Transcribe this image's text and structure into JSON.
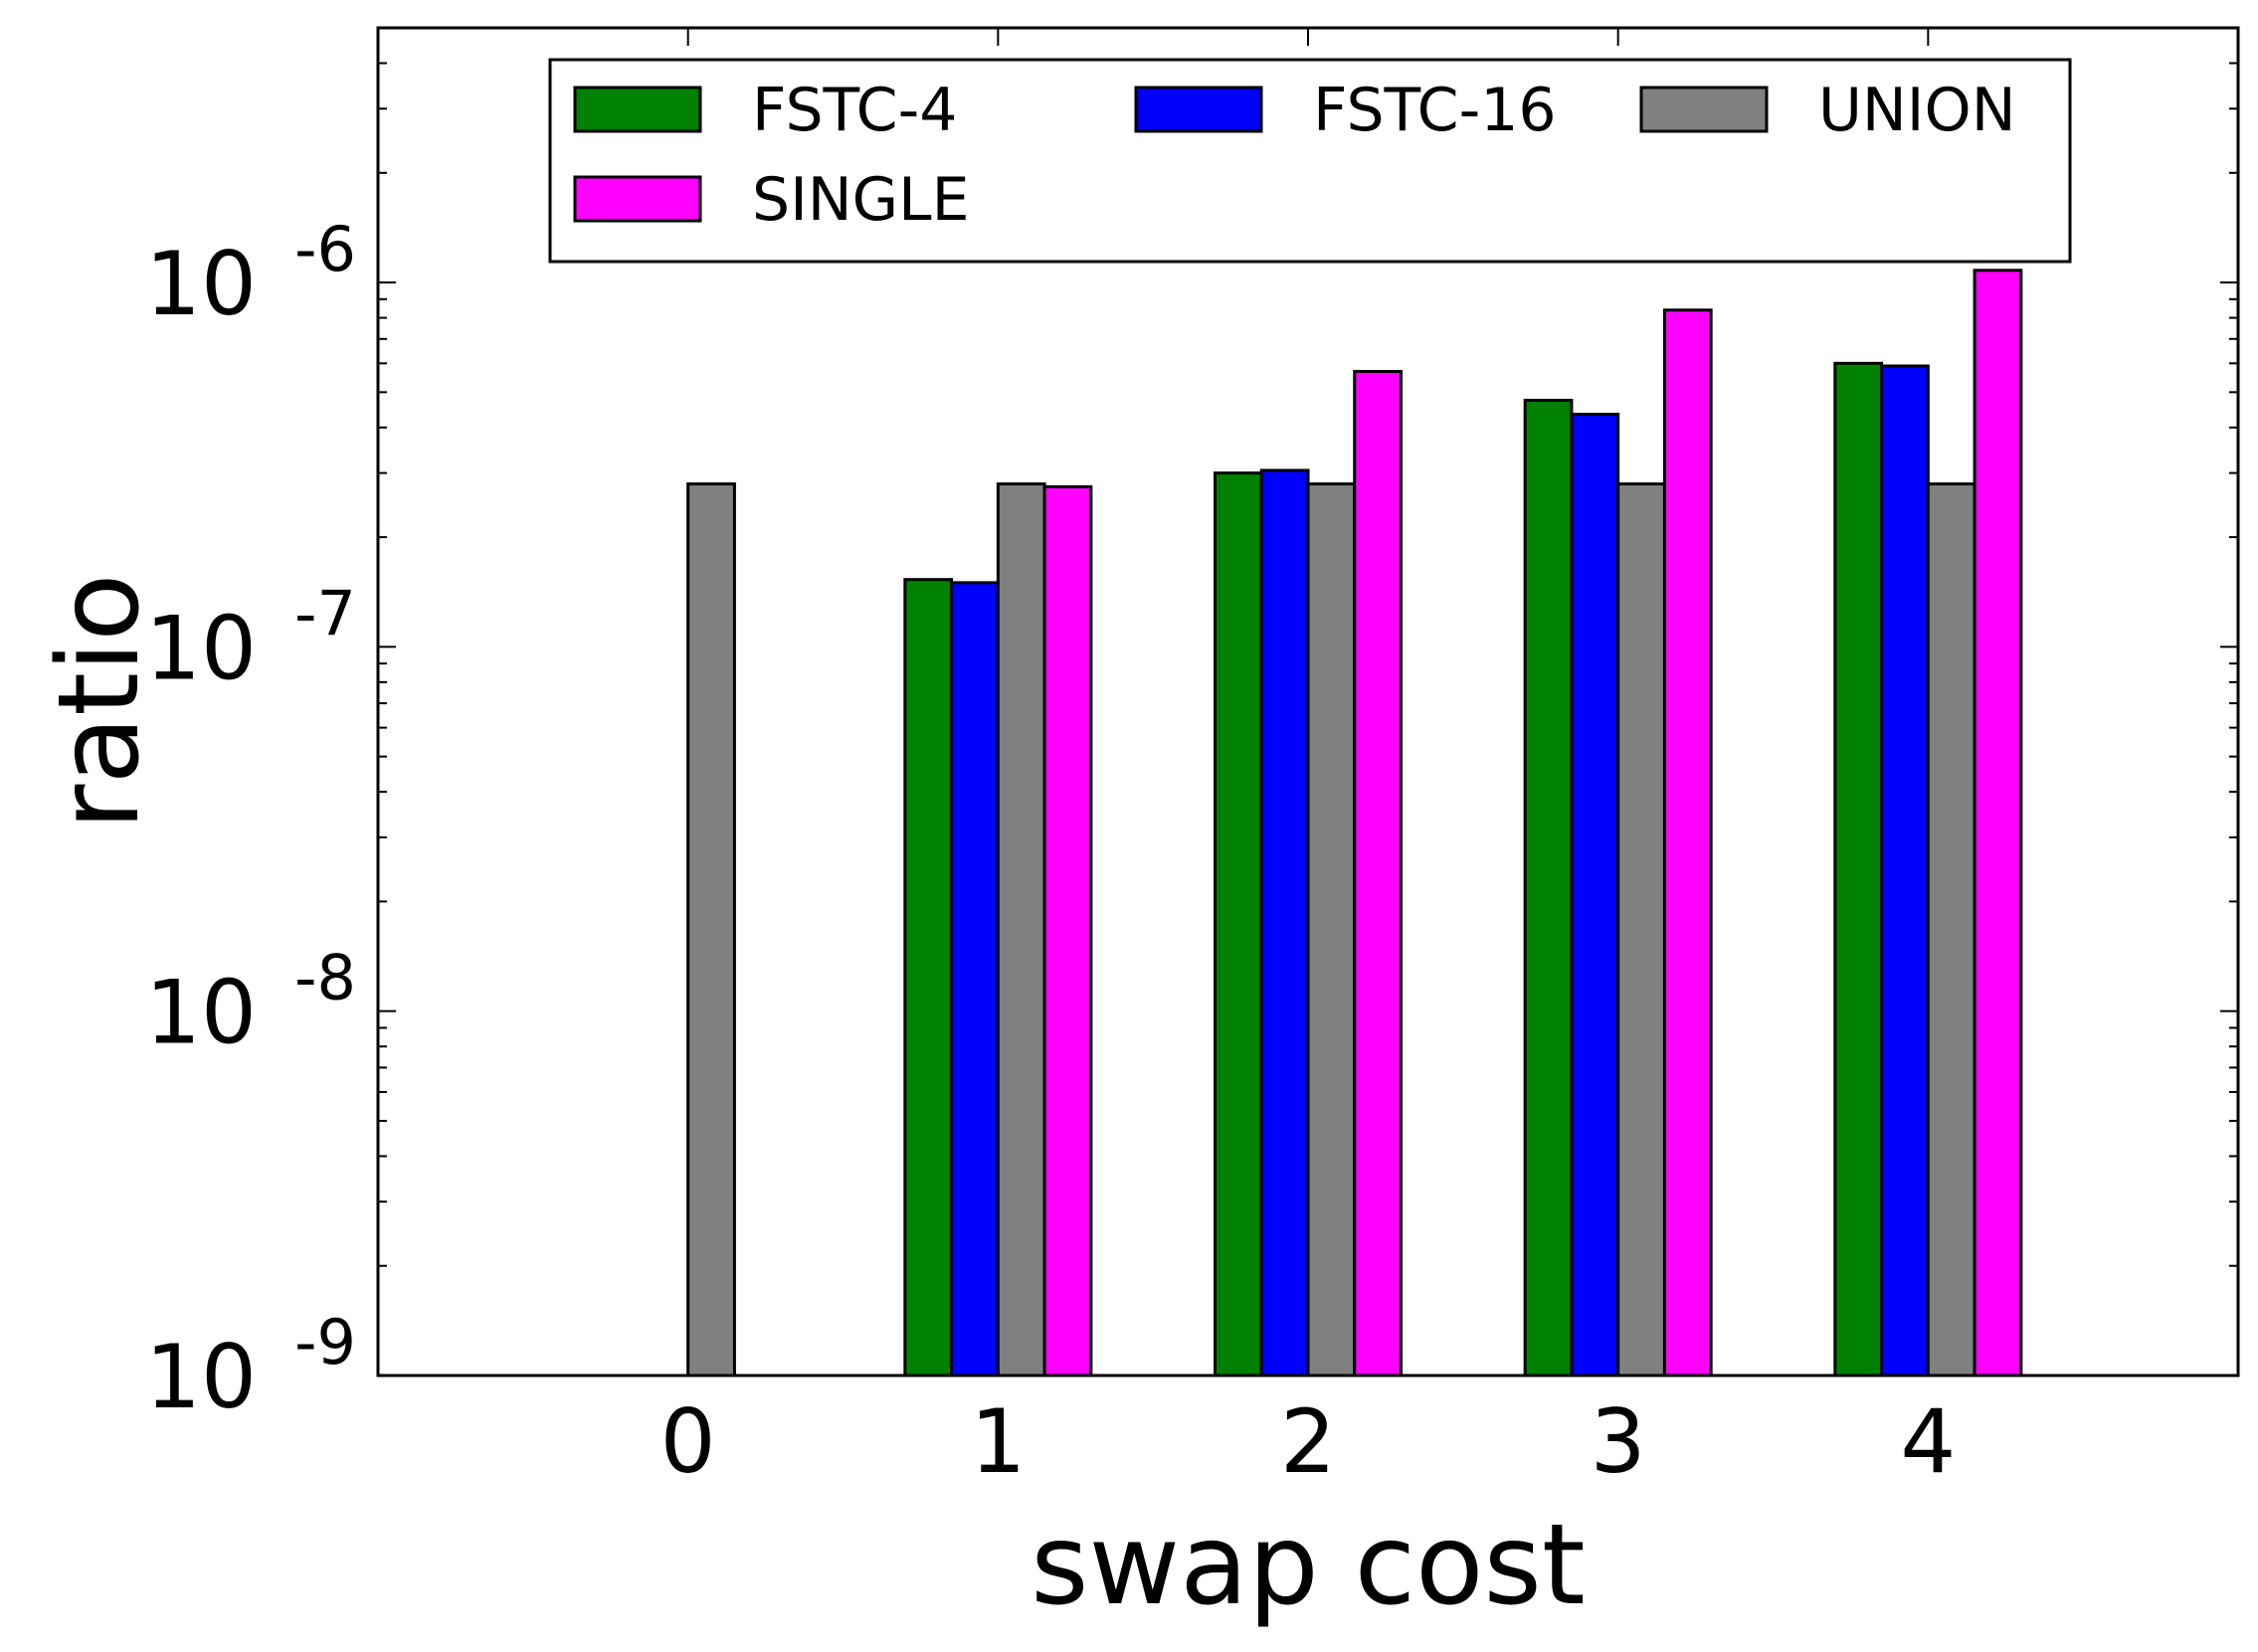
{
  "chart_data": {
    "type": "bar",
    "title": "",
    "xlabel": "swap cost",
    "ylabel": "ratio",
    "yscale": "log",
    "categories": [
      "0",
      "1",
      "2",
      "3",
      "4"
    ],
    "xlim": [
      -1,
      5
    ],
    "ylim": [
      1e-09,
      5e-06
    ],
    "y_tick_labels": [
      {
        "value": 1e-09,
        "base": "10",
        "exp": "-9"
      },
      {
        "value": 1e-08,
        "base": "10",
        "exp": "-8"
      },
      {
        "value": 1e-07,
        "base": "10",
        "exp": "-7"
      },
      {
        "value": 1e-06,
        "base": "10",
        "exp": "-6"
      }
    ],
    "series": [
      {
        "name": "FSTC-4",
        "color": "#008000",
        "values": [
          null,
          1.53e-07,
          3e-07,
          4.75e-07,
          6e-07
        ]
      },
      {
        "name": "FSTC-16",
        "color": "#0000ff",
        "values": [
          null,
          1.5e-07,
          3.05e-07,
          4.35e-07,
          5.9e-07
        ]
      },
      {
        "name": "UNION",
        "color": "#808080",
        "values": [
          2.8e-07,
          2.8e-07,
          2.8e-07,
          2.8e-07,
          2.8e-07
        ]
      },
      {
        "name": "SINGLE",
        "color": "#ff00ff",
        "values": [
          null,
          2.75e-07,
          5.7e-07,
          8.4e-07,
          1.08e-06
        ]
      }
    ],
    "legend": {
      "position": "top",
      "columns": 3
    },
    "grid": false
  }
}
